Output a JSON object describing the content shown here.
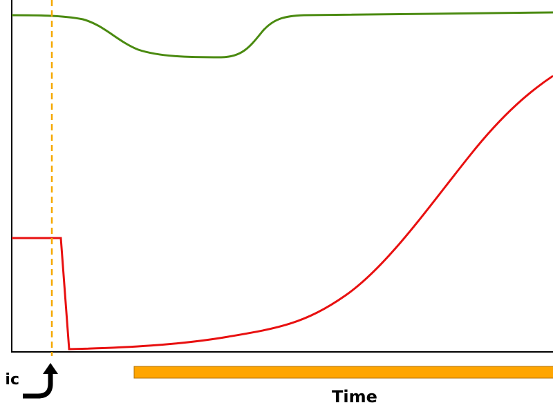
{
  "labels": {
    "left_label": "ic",
    "x_axis_label": "Time"
  }
}
